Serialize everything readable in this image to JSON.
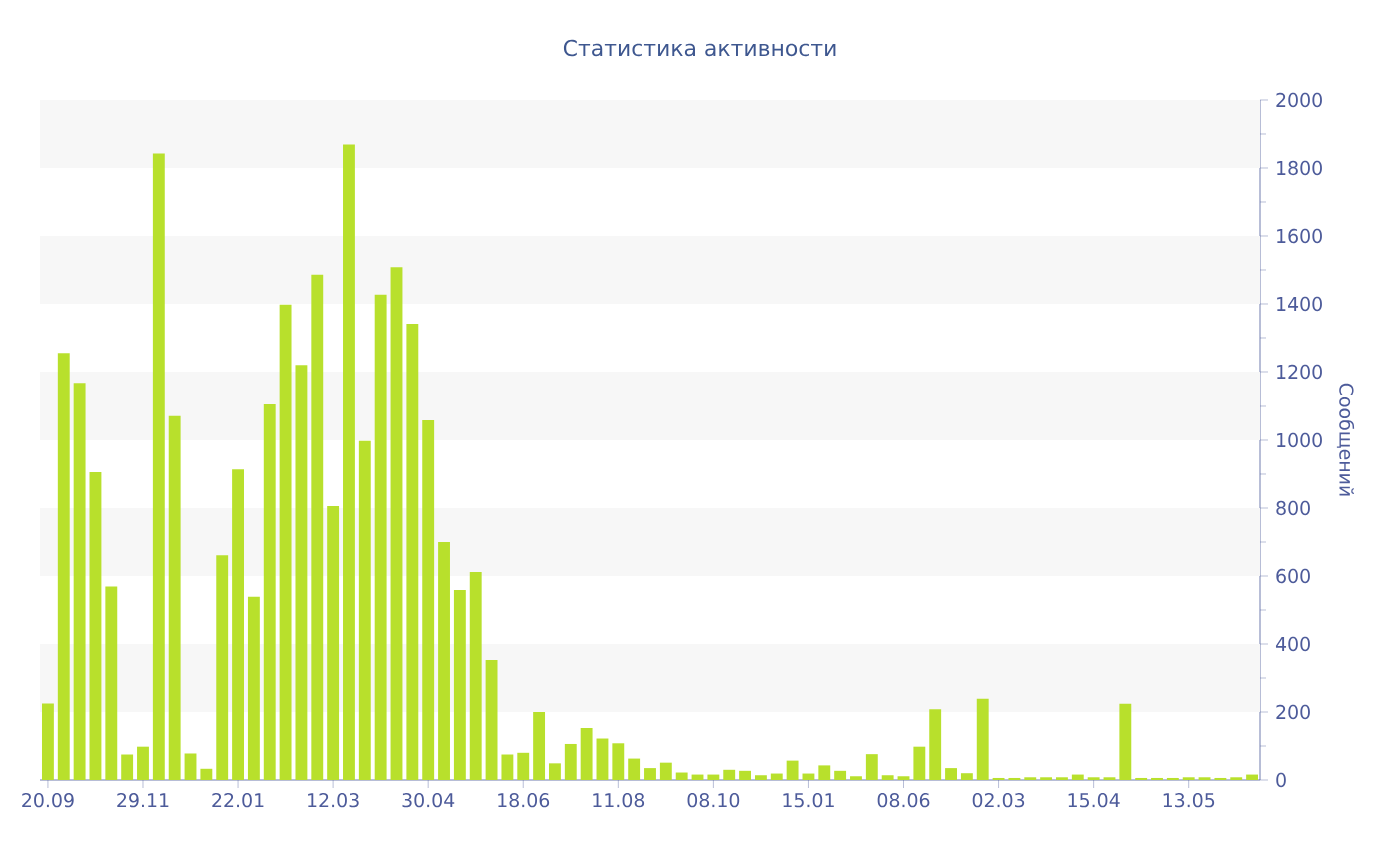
{
  "chart_data": {
    "type": "bar",
    "title": "Статистика активности",
    "ylabel": "Сообщений",
    "categories": [
      "20.09",
      null,
      null,
      null,
      null,
      null,
      "29.11",
      null,
      null,
      null,
      null,
      null,
      "22.01",
      null,
      null,
      null,
      null,
      null,
      "12.03",
      null,
      null,
      null,
      null,
      null,
      "30.04",
      null,
      null,
      null,
      null,
      null,
      "18.06",
      null,
      null,
      null,
      null,
      null,
      "11.08",
      null,
      null,
      null,
      null,
      null,
      "08.10",
      null,
      null,
      null,
      null,
      null,
      "15.01",
      null,
      null,
      null,
      null,
      null,
      "08.06",
      null,
      null,
      null,
      null,
      null,
      "02.03",
      null,
      null,
      null,
      null,
      null,
      "15.04",
      null,
      null,
      null,
      null,
      null,
      "13.05",
      null,
      null,
      null,
      null
    ],
    "values": [
      225,
      1255,
      1167,
      906,
      569,
      75,
      98,
      1843,
      1071,
      78,
      33,
      661,
      914,
      539,
      1106,
      1398,
      1220,
      1486,
      806,
      1869,
      998,
      1427,
      1508,
      1341,
      1059,
      700,
      559,
      612,
      353,
      75,
      80,
      200,
      49,
      106,
      153,
      122,
      108,
      63,
      35,
      51,
      22,
      16,
      16,
      30,
      27,
      14,
      19,
      57,
      19,
      43,
      27,
      11,
      76,
      14,
      11,
      98,
      208,
      35,
      20,
      239,
      6,
      6,
      8,
      8,
      8,
      16,
      8,
      8,
      224,
      6,
      6,
      6,
      8,
      8,
      6,
      8,
      16
    ],
    "color": "#b8e02c",
    "ylim": [
      0,
      2000
    ],
    "yticks": [
      0,
      200,
      400,
      600,
      800,
      1000,
      1200,
      1400,
      1600,
      1800,
      2000
    ],
    "bands": [
      {
        "axis": "y",
        "from": 200,
        "to": 400,
        "color": "#f7f7f7"
      },
      {
        "axis": "y",
        "from": 600,
        "to": 800,
        "color": "#f7f7f7"
      },
      {
        "axis": "y",
        "from": 1000,
        "to": 1200,
        "color": "#f7f7f7"
      },
      {
        "axis": "y",
        "from": 1400,
        "to": 1600,
        "color": "#f7f7f7"
      },
      {
        "axis": "y",
        "from": 1800,
        "to": 2000,
        "color": "#f7f7f7"
      }
    ],
    "grid": false
  }
}
